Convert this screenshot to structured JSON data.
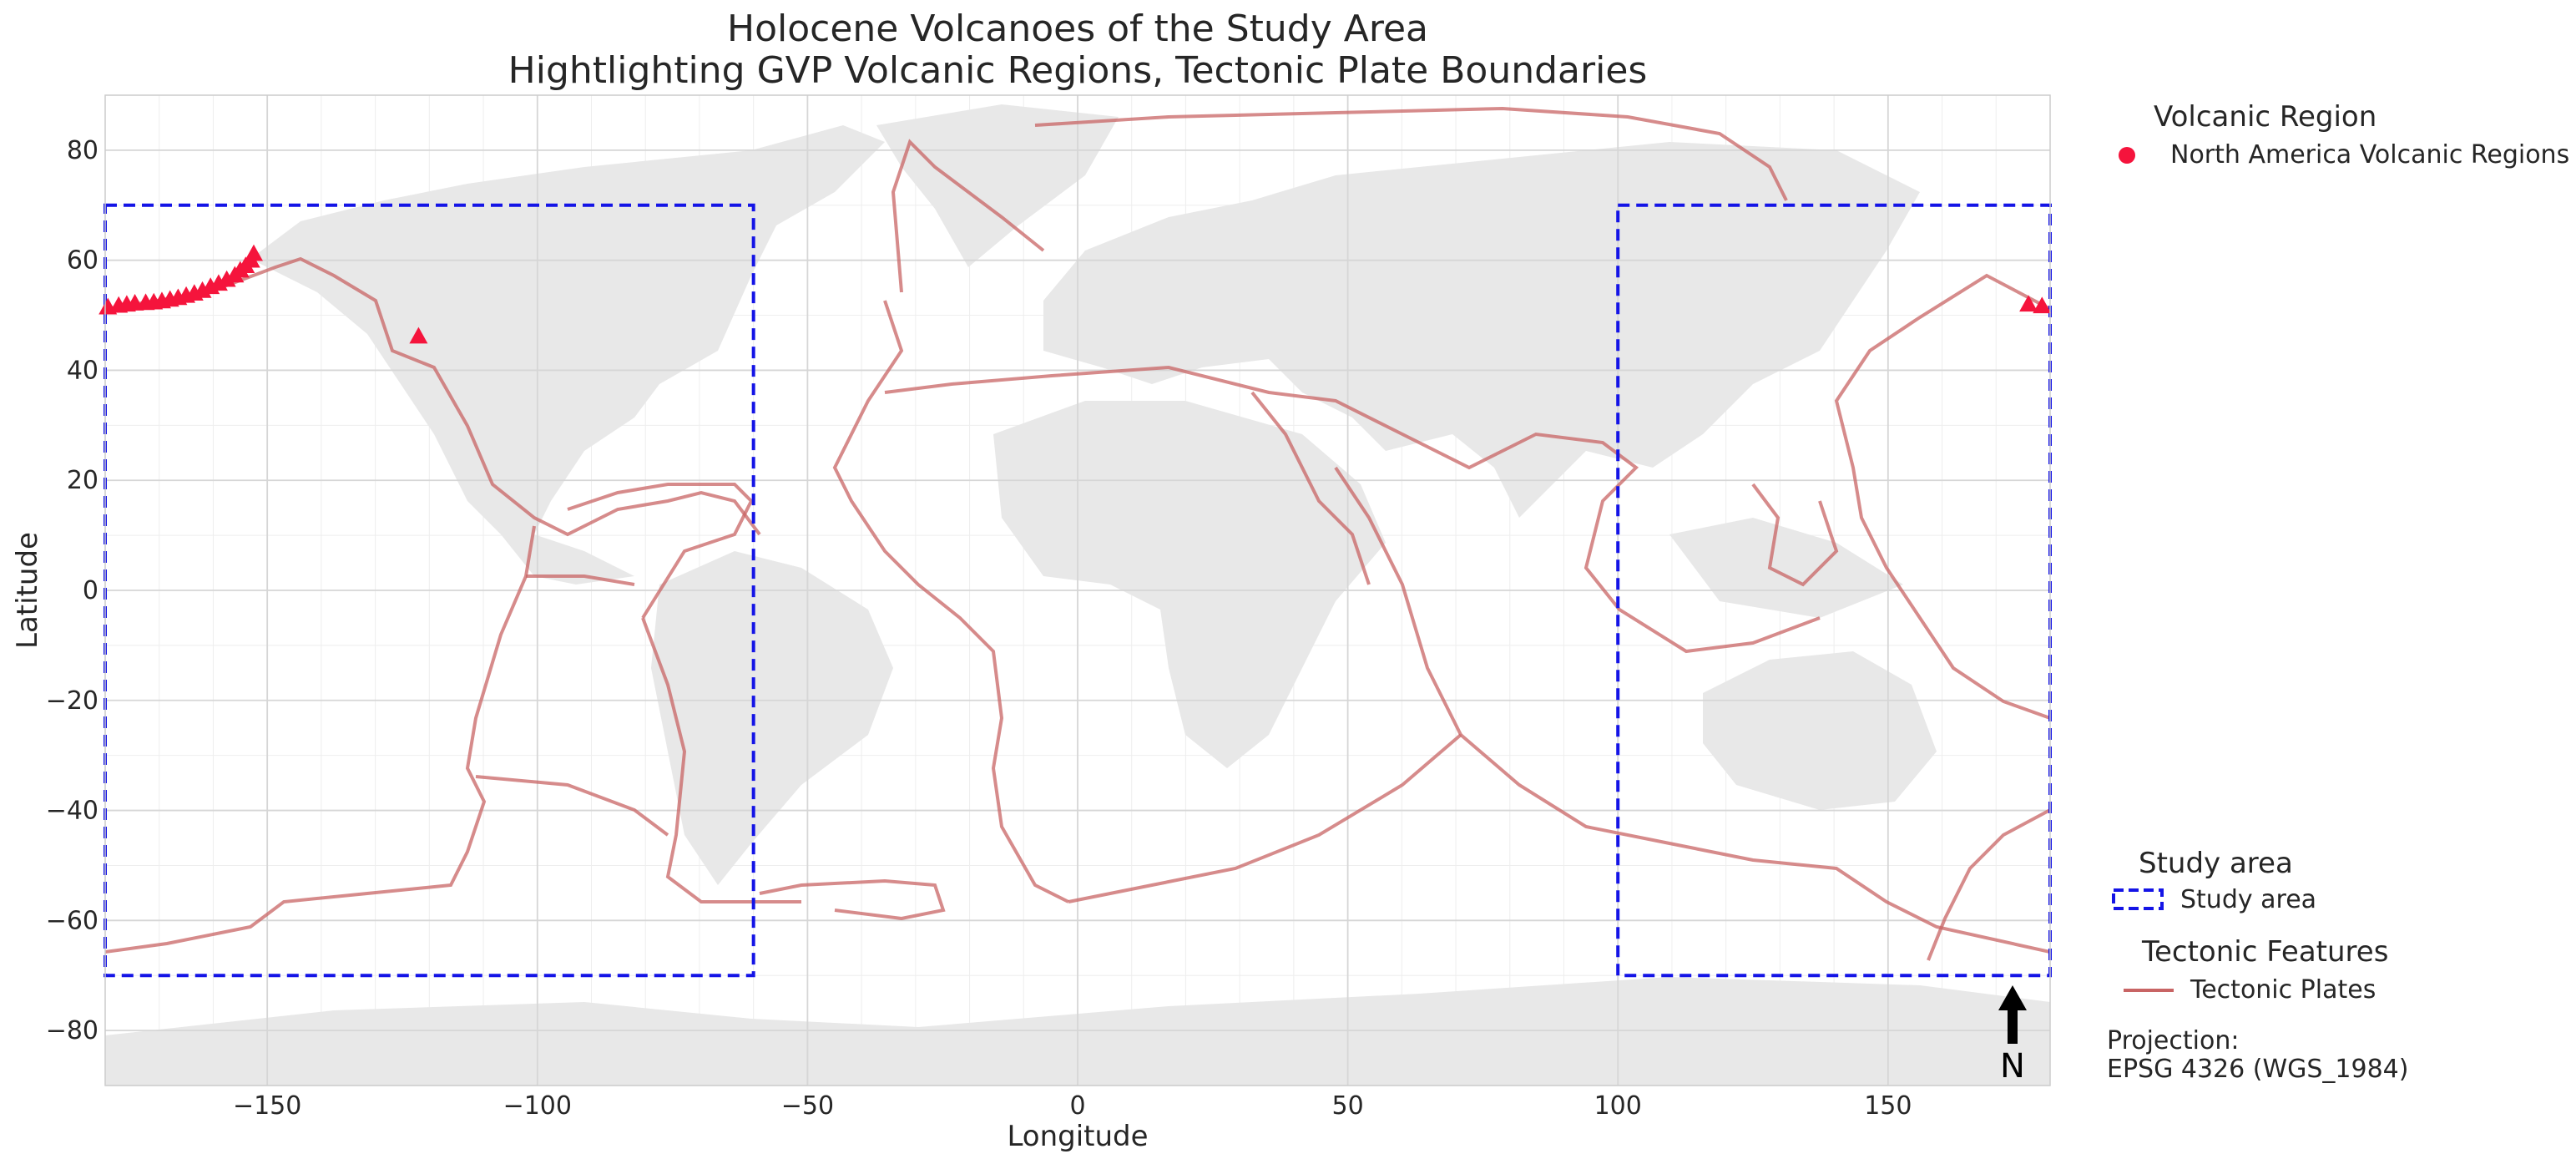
{
  "title": {
    "line1": "Holocene Volcanoes of the Study Area",
    "line2": "Hightlighting GVP Volcanic Regions, Tectonic Plate Boundaries"
  },
  "axes": {
    "xlabel": "Longitude",
    "ylabel": "Latitude",
    "xlim": [
      -180,
      180
    ],
    "ylim": [
      -90,
      90
    ],
    "xticks": [
      -150,
      -100,
      -50,
      0,
      50,
      100,
      150
    ],
    "xtick_labels": [
      "−150",
      "−100",
      "−50",
      "0",
      "50",
      "100",
      "150"
    ],
    "yticks": [
      80,
      60,
      40,
      20,
      0,
      -20,
      -40,
      -60,
      -80
    ],
    "ytick_labels": [
      "80",
      "60",
      "40",
      "20",
      "0",
      "−20",
      "−40",
      "−60",
      "−80"
    ],
    "grid": true
  },
  "legend": {
    "volcanic_title": "Volcanic Region",
    "volcanic_item": "North America Volcanic Regions",
    "study_title": "Study area",
    "study_item": "Study area",
    "tectonic_title": "Tectonic Features",
    "tectonic_item": "Tectonic Plates"
  },
  "projection": {
    "line1": "Projection:",
    "line2": "EPSG 4326 (WGS_1984)"
  },
  "north_arrow": "N",
  "colors": {
    "volcano": "#f5143c",
    "study_area": "#1414e6",
    "plates": "#c86464",
    "land": "#e8e8e8",
    "grid": "#d6d6d6"
  },
  "study_areas": [
    {
      "lon": [
        -180,
        -60
      ],
      "lat": [
        -70,
        70
      ]
    },
    {
      "lon": [
        100,
        180
      ],
      "lat": [
        -70,
        70
      ]
    }
  ],
  "volcanoes": [
    [
      -179.5,
      51.5
    ],
    [
      -177.5,
      51.8
    ],
    [
      -176.0,
      52.0
    ],
    [
      -174.5,
      52.2
    ],
    [
      -172.5,
      52.3
    ],
    [
      -171.0,
      52.4
    ],
    [
      -169.5,
      52.6
    ],
    [
      -168.0,
      52.9
    ],
    [
      -166.5,
      53.2
    ],
    [
      -165.0,
      53.6
    ],
    [
      -163.5,
      54.0
    ],
    [
      -162.0,
      54.5
    ],
    [
      -160.5,
      55.2
    ],
    [
      -159.0,
      55.8
    ],
    [
      -157.5,
      56.5
    ],
    [
      -156.0,
      57.3
    ],
    [
      -155.0,
      58.2
    ],
    [
      -154.0,
      59.0
    ],
    [
      -153.0,
      60.0
    ],
    [
      -152.5,
      61.2
    ],
    [
      -122.0,
      46.2
    ],
    [
      176.0,
      52.0
    ],
    [
      178.5,
      51.7
    ]
  ]
}
